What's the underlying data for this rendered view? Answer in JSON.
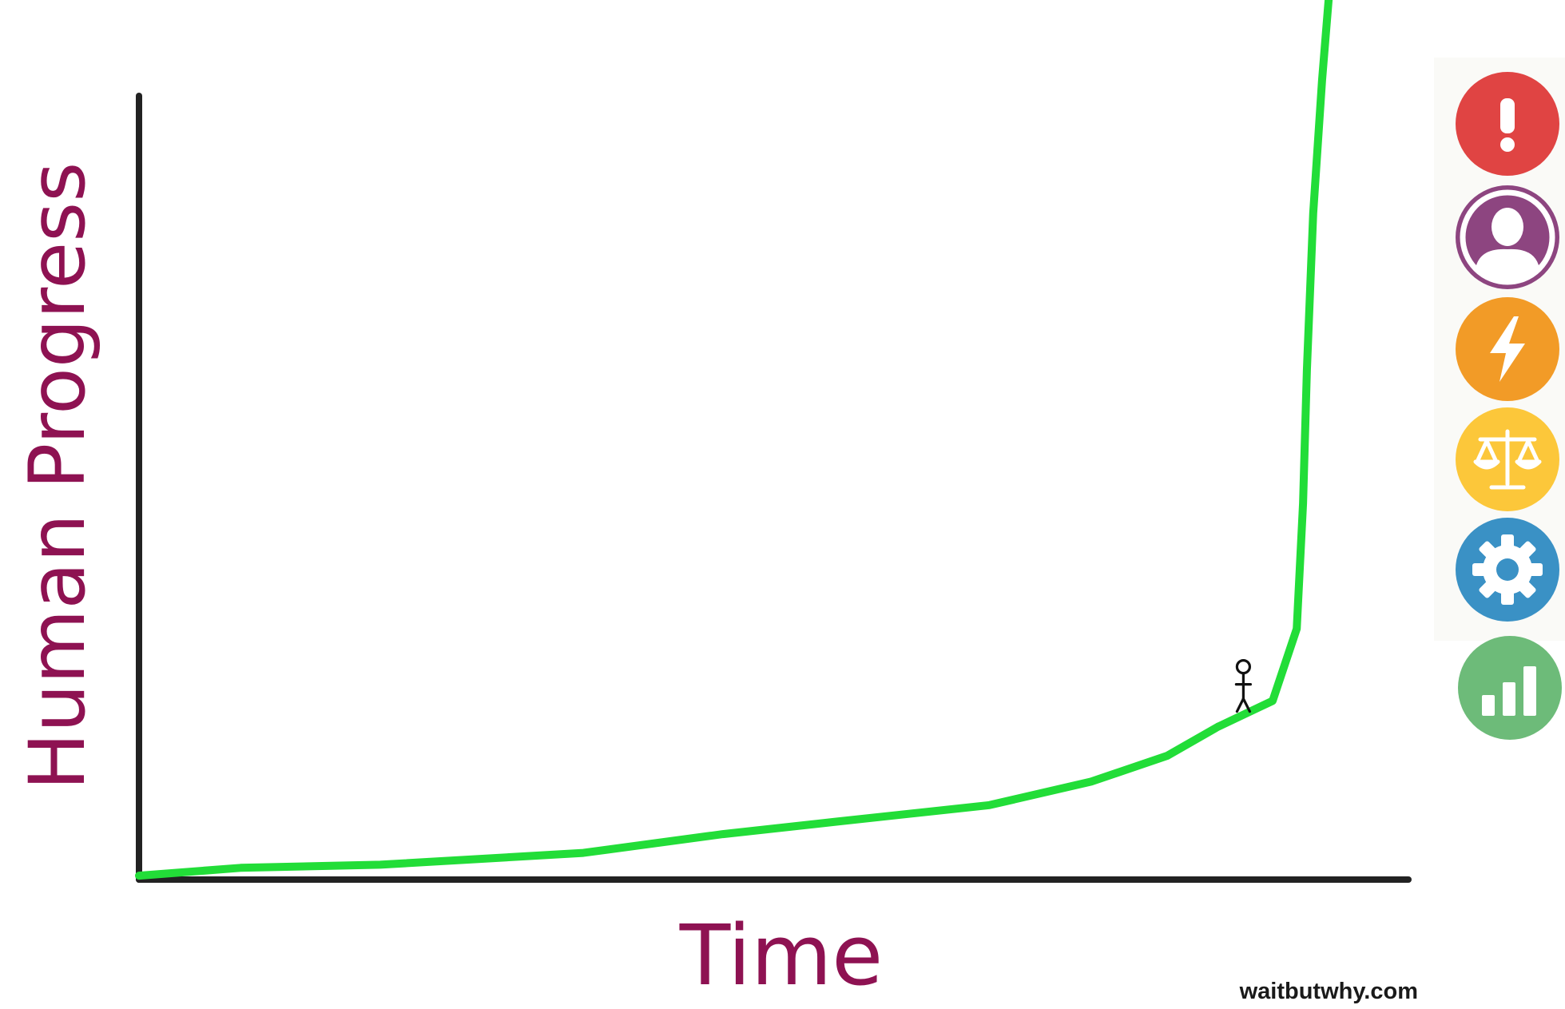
{
  "chart_data": {
    "type": "line",
    "title": "",
    "xlabel": "Time",
    "ylabel": "Human Progress",
    "series": [
      {
        "x": [
          0,
          8,
          19,
          35,
          46,
          55,
          67,
          75,
          81,
          85,
          89.3,
          91.2,
          91.7,
          92,
          92.5,
          93.2,
          94
        ],
        "y": [
          0.5,
          1.5,
          1.9,
          3.4,
          5.8,
          7.4,
          9.5,
          12.5,
          15.8,
          19.5,
          22.8,
          32,
          48,
          65,
          85,
          102,
          118
        ]
      }
    ],
    "xlim": [
      0,
      100
    ],
    "ylim": [
      0,
      100
    ],
    "grid": false,
    "line_color": "#22dd38",
    "axis_color": "#222222",
    "label_color": "#8e1252",
    "arrow_end": true,
    "marker": "stick-figure"
  },
  "credit": "waitbutwhy.com",
  "sidebar": {
    "buttons": [
      {
        "icon": "exclamation-icon",
        "color": "#e04443"
      },
      {
        "icon": "person-icon",
        "color": "#8d4580"
      },
      {
        "icon": "lightning-icon",
        "color": "#f29b27"
      },
      {
        "icon": "scales-icon",
        "color": "#fcc73a"
      },
      {
        "icon": "gear-icon",
        "color": "#3a91c5"
      },
      {
        "icon": "bar-chart-icon",
        "color": "#6dbb79"
      }
    ]
  }
}
